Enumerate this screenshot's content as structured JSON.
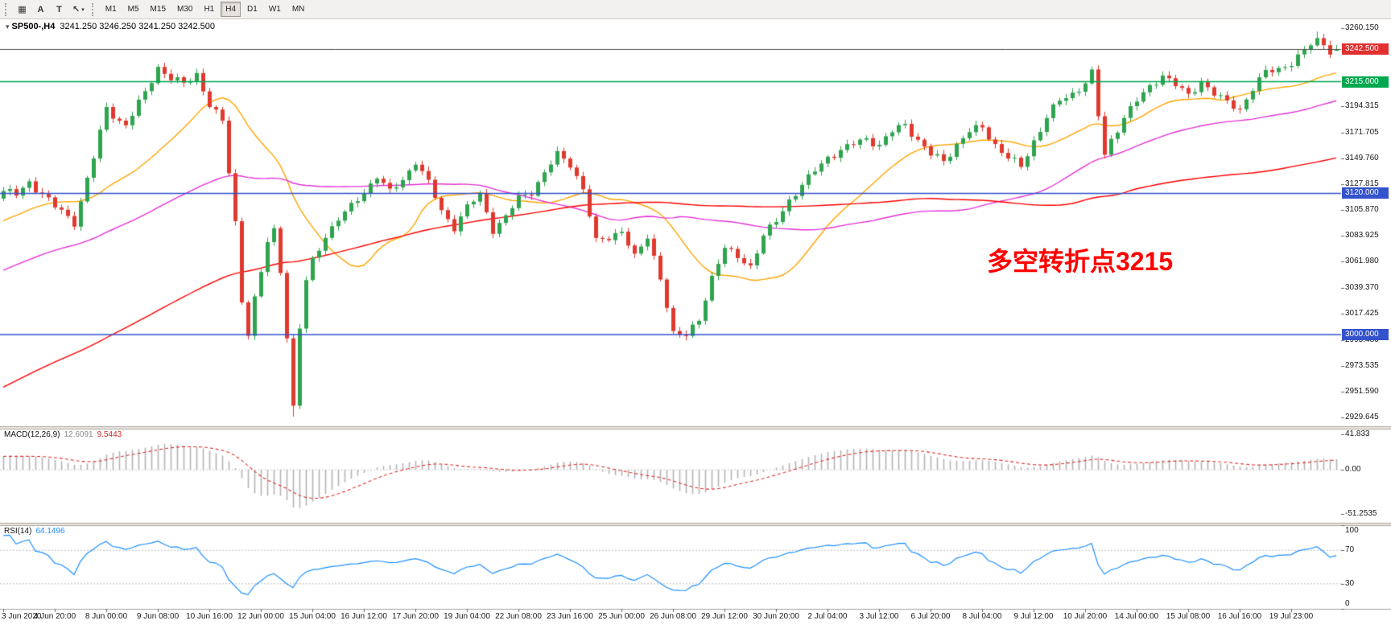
{
  "toolbar": {
    "tools": [
      {
        "name": "grid",
        "glyph": "▦"
      },
      {
        "name": "text-a",
        "glyph": "A"
      },
      {
        "name": "text-t",
        "glyph": "T"
      },
      {
        "name": "cursor",
        "glyph": "↖",
        "caret": "▾"
      }
    ],
    "timeframes": [
      "M1",
      "M5",
      "M15",
      "M30",
      "H1",
      "H4",
      "D1",
      "W1",
      "MN"
    ],
    "active_timeframe": "H4"
  },
  "chart_data": {
    "type": "candlestick",
    "symbol": "SP500-",
    "timeframe": "H4",
    "title_marker": "▾",
    "title_symbol": "SP500-,H4",
    "title_ohlc": "3241.250 3246.250 3241.250 3242.500",
    "current_ohlc": {
      "open": 3241.25,
      "high": 3246.25,
      "low": 3241.25,
      "close": 3242.5
    },
    "annotation": {
      "text": "多空转折点3215",
      "color": "#FF0000"
    },
    "bars": 208,
    "pre_bars": 130,
    "noise_amplitude": 2.2,
    "candle_colors": {
      "up": "#2FA44F",
      "down": "#E0392E"
    },
    "price_axis": {
      "min": 2922,
      "max": 3268,
      "labels": [
        {
          "text": "3260.150",
          "value": 3260.15
        },
        {
          "text": "3194.315",
          "value": 3194.315
        },
        {
          "text": "3171.705",
          "value": 3171.705
        },
        {
          "text": "3149.760",
          "value": 3149.76
        },
        {
          "text": "3127.815",
          "value": 3127.815
        },
        {
          "text": "3105.870",
          "value": 3105.87
        },
        {
          "text": "3083.925",
          "value": 3083.925
        },
        {
          "text": "3061.980",
          "value": 3061.98
        },
        {
          "text": "3039.370",
          "value": 3039.37
        },
        {
          "text": "3017.425",
          "value": 3017.425
        },
        {
          "text": "2995.480",
          "value": 2995.48
        },
        {
          "text": "2973.535",
          "value": 2973.535
        },
        {
          "text": "2951.590",
          "value": 2951.59
        },
        {
          "text": "2929.645",
          "value": 2929.645
        }
      ]
    },
    "time_axis_labels": [
      "3 Jun 2020",
      "4 Jun 20:00",
      "8 Jun 00:00",
      "9 Jun 08:00",
      "10 Jun 16:00",
      "12 Jun 00:00",
      "15 Jun 04:00",
      "16 Jun 12:00",
      "17 Jun 20:00",
      "19 Jun 04:00",
      "22 Jun 08:00",
      "23 Jun 16:00",
      "25 Jun 00:00",
      "26 Jun 08:00",
      "29 Jun 12:00",
      "30 Jun 20:00",
      "2 Jul 04:00",
      "3 Jul 12:00",
      "6 Jul 20:00",
      "8 Jul 04:00",
      "9 Jul 12:00",
      "10 Jul 20:00",
      "14 Jul 00:00",
      "15 Jul 08:00",
      "16 Jul 16:00",
      "19 Jul 23:00"
    ],
    "price_waypoints": [
      [
        -130,
        2760
      ],
      [
        -100,
        2850
      ],
      [
        -70,
        2950
      ],
      [
        -40,
        3040
      ],
      [
        -20,
        3070
      ],
      [
        -8,
        3100
      ],
      [
        0,
        3122
      ],
      [
        2,
        3118
      ],
      [
        4,
        3130
      ],
      [
        6,
        3120
      ],
      [
        8,
        3108
      ],
      [
        11,
        3096
      ],
      [
        14,
        3150
      ],
      [
        16,
        3192
      ],
      [
        19,
        3178
      ],
      [
        22,
        3205
      ],
      [
        24,
        3228
      ],
      [
        26,
        3218
      ],
      [
        28,
        3212
      ],
      [
        30,
        3222
      ],
      [
        32,
        3196
      ],
      [
        34,
        3180
      ],
      [
        36,
        3095
      ],
      [
        37,
        3030
      ],
      [
        38,
        3002
      ],
      [
        39,
        3030
      ],
      [
        40,
        3052
      ],
      [
        41,
        3078
      ],
      [
        42,
        3088
      ],
      [
        43,
        3055
      ],
      [
        44,
        3000
      ],
      [
        45,
        2938
      ],
      [
        46,
        3005
      ],
      [
        47,
        3045
      ],
      [
        48,
        3062
      ],
      [
        50,
        3085
      ],
      [
        52,
        3098
      ],
      [
        54,
        3108
      ],
      [
        56,
        3122
      ],
      [
        58,
        3135
      ],
      [
        60,
        3120
      ],
      [
        62,
        3132
      ],
      [
        64,
        3148
      ],
      [
        66,
        3128
      ],
      [
        68,
        3105
      ],
      [
        70,
        3092
      ],
      [
        72,
        3108
      ],
      [
        74,
        3118
      ],
      [
        76,
        3090
      ],
      [
        78,
        3100
      ],
      [
        80,
        3115
      ],
      [
        82,
        3122
      ],
      [
        84,
        3138
      ],
      [
        86,
        3152
      ],
      [
        88,
        3145
      ],
      [
        90,
        3125
      ],
      [
        92,
        3078
      ],
      [
        94,
        3082
      ],
      [
        96,
        3090
      ],
      [
        98,
        3065
      ],
      [
        100,
        3082
      ],
      [
        102,
        3050
      ],
      [
        104,
        3000
      ],
      [
        106,
        2998
      ],
      [
        108,
        3015
      ],
      [
        110,
        3048
      ],
      [
        112,
        3072
      ],
      [
        114,
        3068
      ],
      [
        116,
        3058
      ],
      [
        118,
        3082
      ],
      [
        120,
        3098
      ],
      [
        122,
        3115
      ],
      [
        124,
        3125
      ],
      [
        126,
        3140
      ],
      [
        128,
        3152
      ],
      [
        130,
        3155
      ],
      [
        132,
        3162
      ],
      [
        134,
        3168
      ],
      [
        136,
        3160
      ],
      [
        138,
        3172
      ],
      [
        140,
        3180
      ],
      [
        142,
        3165
      ],
      [
        144,
        3152
      ],
      [
        146,
        3148
      ],
      [
        148,
        3162
      ],
      [
        150,
        3172
      ],
      [
        152,
        3176
      ],
      [
        154,
        3162
      ],
      [
        156,
        3150
      ],
      [
        158,
        3142
      ],
      [
        160,
        3165
      ],
      [
        162,
        3185
      ],
      [
        164,
        3198
      ],
      [
        166,
        3205
      ],
      [
        168,
        3215
      ],
      [
        169,
        3222
      ],
      [
        170,
        3185
      ],
      [
        171,
        3152
      ],
      [
        172,
        3165
      ],
      [
        174,
        3186
      ],
      [
        176,
        3198
      ],
      [
        178,
        3210
      ],
      [
        180,
        3222
      ],
      [
        182,
        3212
      ],
      [
        184,
        3202
      ],
      [
        186,
        3216
      ],
      [
        188,
        3205
      ],
      [
        190,
        3196
      ],
      [
        192,
        3192
      ],
      [
        194,
        3210
      ],
      [
        196,
        3222
      ],
      [
        198,
        3226
      ],
      [
        200,
        3232
      ],
      [
        202,
        3240
      ],
      [
        204,
        3252
      ],
      [
        205,
        3246
      ],
      [
        206,
        3238
      ],
      [
        207,
        3242.5
      ]
    ],
    "moving_averages": [
      {
        "name": "fast",
        "period": 20,
        "color": "#FFA500"
      },
      {
        "name": "medium",
        "period": 60,
        "color": "#E632D8"
      },
      {
        "name": "slow",
        "period": 130,
        "color": "#FF0000"
      }
    ],
    "horizontal_lines": [
      {
        "price": 3215.0,
        "label": "3215.000",
        "color": "#00A84F"
      },
      {
        "price": 3120.0,
        "label": "3120.000",
        "color": "#3352CC"
      },
      {
        "price": 3000.0,
        "label": "3000.000",
        "color": "#3352CC"
      }
    ],
    "current_price": {
      "value": 3242.5,
      "label": "3242.500",
      "badge_color": "#E03030",
      "line_color": "#444444"
    },
    "macd": {
      "name": "MACD(12,26,9)",
      "fast": 12,
      "slow": 26,
      "signal": 9,
      "value_main": "12.6091",
      "value_signal": "9.5443",
      "histogram_color": "#B4B4B4",
      "signal_color": "#E03030",
      "axis": {
        "min": -62,
        "max": 48,
        "labels": [
          {
            "text": "41.833",
            "value": 41.833
          },
          {
            "text": "0.00",
            "value": 0
          },
          {
            "text": "-51.2535",
            "value": -51.2535
          }
        ]
      }
    },
    "rsi": {
      "name": "RSI(14)",
      "period": 14,
      "value": "64.1496",
      "color": "#1E90FF",
      "levels": [
        70,
        30
      ],
      "axis": {
        "min": 0,
        "max": 100,
        "labels": [
          {
            "text": "100",
            "value": 100
          },
          {
            "text": "70",
            "value": 70
          },
          {
            "text": "30",
            "value": 30
          },
          {
            "text": "0",
            "value": 0
          }
        ]
      }
    }
  }
}
